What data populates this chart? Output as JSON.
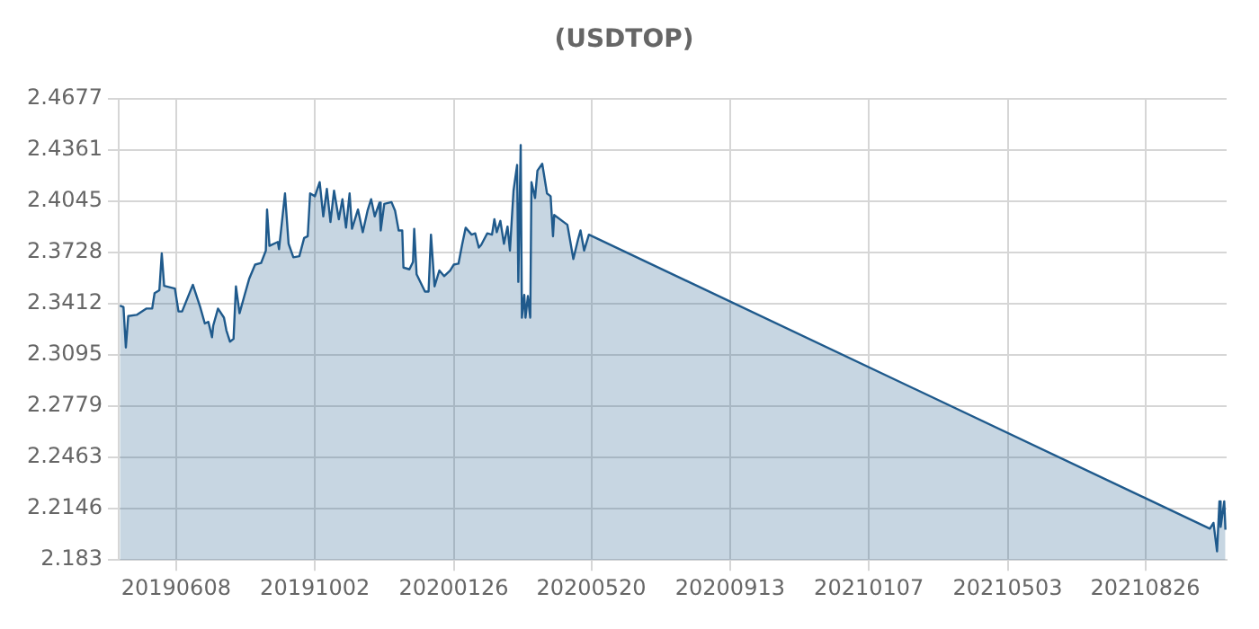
{
  "chart_data": {
    "type": "area",
    "title": "(USDTOP)",
    "x": [
      "2019-04-22",
      "2019-04-25",
      "2019-04-27",
      "2019-04-29",
      "2019-05-06",
      "2019-05-14",
      "2019-05-19",
      "2019-05-21",
      "2019-05-25",
      "2019-05-27",
      "2019-05-29",
      "2019-06-07",
      "2019-06-10",
      "2019-06-13",
      "2019-06-22",
      "2019-06-28",
      "2019-07-02",
      "2019-07-05",
      "2019-07-08",
      "2019-07-09",
      "2019-07-13",
      "2019-07-18",
      "2019-07-20",
      "2019-07-23",
      "2019-07-26",
      "2019-07-28",
      "2019-07-31",
      "2019-08-04",
      "2019-08-08",
      "2019-08-13",
      "2019-08-18",
      "2019-08-22",
      "2019-08-23",
      "2019-08-25",
      "2019-09-01",
      "2019-09-02",
      "2019-09-07",
      "2019-09-10",
      "2019-09-14",
      "2019-09-19",
      "2019-09-23",
      "2019-09-26",
      "2019-09-28",
      "2019-10-02",
      "2019-10-06",
      "2019-10-09",
      "2019-10-12",
      "2019-10-15",
      "2019-10-18",
      "2019-10-22",
      "2019-10-25",
      "2019-10-28",
      "2019-10-31",
      "2019-11-02",
      "2019-11-07",
      "2019-11-11",
      "2019-11-15",
      "2019-11-18",
      "2019-11-21",
      "2019-11-25",
      "2019-11-26",
      "2019-11-29",
      "2019-12-05",
      "2019-12-08",
      "2019-12-11",
      "2019-12-14",
      "2019-12-15",
      "2019-12-20",
      "2019-12-23",
      "2019-12-24",
      "2019-12-26",
      "2020-01-02",
      "2020-01-05",
      "2020-01-07",
      "2020-01-10",
      "2020-01-14",
      "2020-01-18",
      "2020-01-23",
      "2020-01-26",
      "2020-01-30",
      "2020-02-02",
      "2020-02-05",
      "2020-02-10",
      "2020-02-13",
      "2020-02-16",
      "2020-02-18",
      "2020-02-23",
      "2020-02-27",
      "2020-02-29",
      "2020-03-02",
      "2020-03-05",
      "2020-03-08",
      "2020-03-11",
      "2020-03-13",
      "2020-03-16",
      "2020-03-19",
      "2020-03-20",
      "2020-03-22",
      "2020-03-23",
      "2020-03-25",
      "2020-03-26",
      "2020-03-28",
      "2020-03-30",
      "2020-03-31",
      "2020-04-03",
      "2020-04-05",
      "2020-04-09",
      "2020-04-13",
      "2020-04-16",
      "2020-04-18",
      "2020-04-19",
      "2020-04-30",
      "2020-05-05",
      "2020-05-09",
      "2020-05-11",
      "2020-05-14",
      "2020-05-18",
      "2021-10-19",
      "2021-10-22",
      "2021-10-25",
      "2021-10-27",
      "2021-10-28",
      "2021-10-31",
      "2021-11-01"
    ],
    "series": [
      {
        "color": "#1f5a8c",
        "values": [
          2.3399,
          2.3391,
          2.3141,
          2.3335,
          2.3342,
          2.3381,
          2.3381,
          2.3476,
          2.3494,
          2.3721,
          2.3521,
          2.3504,
          2.3363,
          2.3363,
          2.3528,
          2.3394,
          2.3289,
          2.3299,
          2.3204,
          2.3275,
          2.3381,
          2.3325,
          2.3247,
          2.3177,
          2.3194,
          2.3518,
          2.3352,
          2.3458,
          2.3563,
          2.3652,
          2.3662,
          2.3739,
          2.3992,
          2.3768,
          2.3792,
          2.3747,
          2.4091,
          2.3781,
          2.3697,
          2.3704,
          2.3816,
          2.3827,
          2.4091,
          2.4074,
          2.4161,
          2.395,
          2.4119,
          2.3915,
          2.4108,
          2.3932,
          2.4056,
          2.388,
          2.4091,
          2.3873,
          2.3992,
          2.3852,
          2.3985,
          2.4056,
          2.395,
          2.4035,
          2.3863,
          2.4027,
          2.4038,
          2.3985,
          2.3863,
          2.3863,
          2.3634,
          2.3623,
          2.3669,
          2.3873,
          2.3592,
          2.3486,
          2.3486,
          2.3837,
          2.3518,
          2.3616,
          2.3581,
          2.3616,
          2.3652,
          2.3658,
          2.3774,
          2.388,
          2.3837,
          2.3845,
          2.3757,
          2.3774,
          2.3845,
          2.3837,
          2.3932,
          2.3852,
          2.3922,
          2.3781,
          2.3887,
          2.3739,
          2.4108,
          2.4267,
          2.3546,
          2.439,
          2.3325,
          2.3465,
          2.3325,
          2.3458,
          2.3325,
          2.4161,
          2.4063,
          2.4232,
          2.4274,
          2.4091,
          2.4074,
          2.3827,
          2.3958,
          2.3898,
          2.3687,
          2.381,
          2.3863,
          2.3739,
          2.3837,
          2.2023,
          2.2059,
          2.1883,
          2.2192,
          2.2034,
          2.2192,
          2.2017
        ]
      }
    ],
    "xlim": [
      "2019-04-21",
      "2021-11-02"
    ],
    "xticks": [
      {
        "value": "2019-06-08",
        "label": "20190608"
      },
      {
        "value": "2019-10-02",
        "label": "20191002"
      },
      {
        "value": "2020-01-26",
        "label": "20200126"
      },
      {
        "value": "2020-05-20",
        "label": "20200520"
      },
      {
        "value": "2020-09-13",
        "label": "20200913"
      },
      {
        "value": "2021-01-07",
        "label": "20210107"
      },
      {
        "value": "2021-05-03",
        "label": "20210503"
      },
      {
        "value": "2021-08-26",
        "label": "20210826"
      }
    ],
    "ylim": [
      2.183,
      2.4677
    ],
    "yticks": [
      2.183,
      2.2146,
      2.2463,
      2.2779,
      2.3095,
      2.3412,
      2.3728,
      2.4045,
      2.4361,
      2.4677
    ],
    "grid": true
  }
}
